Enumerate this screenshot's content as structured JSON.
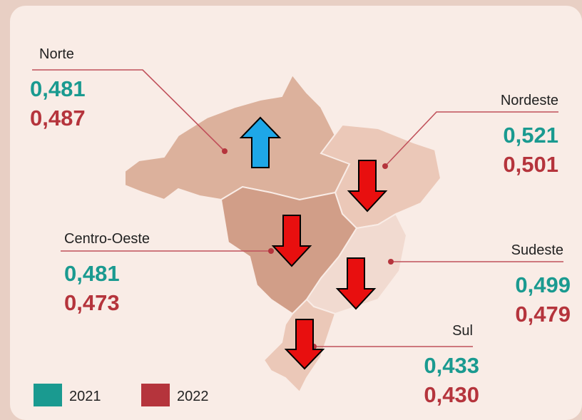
{
  "regions": [
    {
      "name": "Norte",
      "value_2021": "0,481",
      "value_2022": "0,487"
    },
    {
      "name": "Nordeste",
      "value_2021": "0,521",
      "value_2022": "0,501"
    },
    {
      "name": "Centro-Oeste",
      "value_2021": "0,481",
      "value_2022": "0,473"
    },
    {
      "name": "Sudeste",
      "value_2021": "0,499",
      "value_2022": "0,479"
    },
    {
      "name": "Sul",
      "value_2021": "0,433",
      "value_2022": "0,430"
    }
  ],
  "legend": [
    {
      "label": "2021",
      "color": "#1a9a90"
    },
    {
      "label": "2022",
      "color": "#b5343c"
    }
  ]
}
